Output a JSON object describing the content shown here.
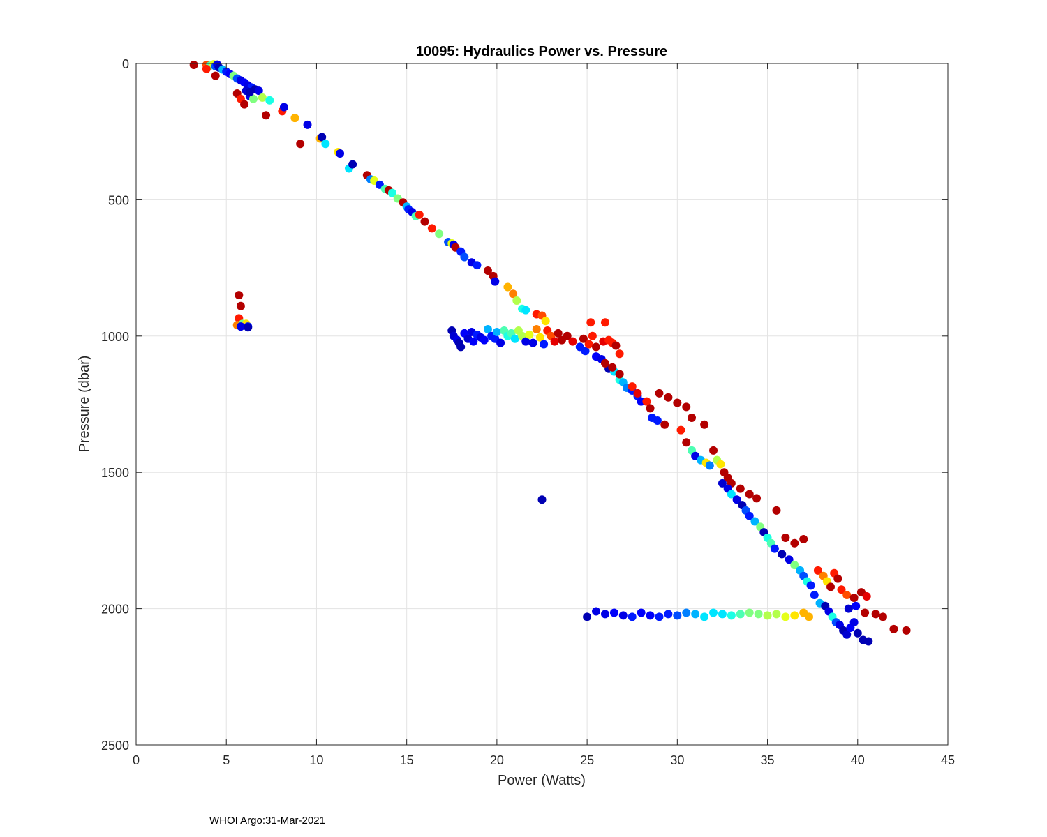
{
  "chart_data": {
    "type": "scatter",
    "title": "10095: Hydraulics Power vs. Pressure",
    "xlabel": "Power (Watts)",
    "ylabel": "Pressure (dbar)",
    "xlim": [
      0,
      45
    ],
    "ylim": [
      0,
      2500
    ],
    "y_reversed": true,
    "grid": true,
    "xticks": [
      0,
      5,
      10,
      15,
      20,
      25,
      30,
      35,
      40,
      45
    ],
    "yticks": [
      0,
      500,
      1000,
      1500,
      2000,
      2500
    ],
    "colormap": "jet",
    "color_range": [
      0,
      1
    ],
    "points": [
      [
        3.2,
        5,
        0.95
      ],
      [
        3.9,
        5,
        0.8
      ],
      [
        4.1,
        8,
        0.45
      ],
      [
        4.3,
        3,
        0.6
      ],
      [
        4.4,
        10,
        0.2
      ],
      [
        4.5,
        4,
        0.1
      ],
      [
        4.6,
        15,
        0.05
      ],
      [
        4.8,
        22,
        0.3
      ],
      [
        5.0,
        30,
        0.15
      ],
      [
        5.2,
        38,
        0.12
      ],
      [
        5.4,
        45,
        0.5
      ],
      [
        5.6,
        55,
        0.2
      ],
      [
        5.8,
        62,
        0.1
      ],
      [
        6.0,
        70,
        0.12
      ],
      [
        6.2,
        80,
        0.1
      ],
      [
        6.4,
        88,
        0.15
      ],
      [
        6.6,
        95,
        0.05
      ],
      [
        6.8,
        100,
        0.1
      ],
      [
        3.9,
        20,
        0.85
      ],
      [
        4.4,
        45,
        0.95
      ],
      [
        5.6,
        110,
        0.95
      ],
      [
        5.8,
        130,
        0.85
      ],
      [
        6.0,
        150,
        0.95
      ],
      [
        6.1,
        100,
        0.08
      ],
      [
        6.3,
        120,
        0.1
      ],
      [
        6.5,
        130,
        0.5
      ],
      [
        6.3,
        105,
        0.05
      ],
      [
        7.0,
        125,
        0.55
      ],
      [
        7.4,
        135,
        0.4
      ],
      [
        7.2,
        190,
        0.95
      ],
      [
        8.1,
        175,
        0.85
      ],
      [
        8.2,
        160,
        0.1
      ],
      [
        8.8,
        200,
        0.7
      ],
      [
        9.1,
        295,
        0.95
      ],
      [
        9.5,
        225,
        0.1
      ],
      [
        10.2,
        275,
        0.7
      ],
      [
        10.3,
        270,
        0.05
      ],
      [
        10.5,
        295,
        0.35
      ],
      [
        11.2,
        325,
        0.65
      ],
      [
        11.3,
        330,
        0.1
      ],
      [
        11.8,
        385,
        0.35
      ],
      [
        12.0,
        370,
        0.05
      ],
      [
        12.8,
        410,
        0.95
      ],
      [
        13.0,
        425,
        0.25
      ],
      [
        13.2,
        430,
        0.6
      ],
      [
        13.5,
        445,
        0.15
      ],
      [
        13.8,
        460,
        0.45
      ],
      [
        14.0,
        465,
        0.95
      ],
      [
        14.2,
        475,
        0.4
      ],
      [
        14.5,
        495,
        0.5
      ],
      [
        14.8,
        510,
        0.95
      ],
      [
        15.0,
        525,
        0.3
      ],
      [
        15.1,
        535,
        0.15
      ],
      [
        15.3,
        545,
        0.1
      ],
      [
        15.5,
        560,
        0.45
      ],
      [
        15.7,
        555,
        0.85
      ],
      [
        16.0,
        580,
        0.95
      ],
      [
        16.4,
        605,
        0.85
      ],
      [
        16.8,
        625,
        0.5
      ],
      [
        17.3,
        655,
        0.2
      ],
      [
        17.5,
        660,
        0.6
      ],
      [
        17.6,
        665,
        0.1
      ],
      [
        17.7,
        675,
        0.95
      ],
      [
        18.0,
        690,
        0.15
      ],
      [
        18.2,
        710,
        0.2
      ],
      [
        18.6,
        730,
        0.1
      ],
      [
        18.9,
        740,
        0.15
      ],
      [
        19.5,
        760,
        0.95
      ],
      [
        19.8,
        780,
        0.95
      ],
      [
        19.9,
        800,
        0.1
      ],
      [
        20.6,
        820,
        0.7
      ],
      [
        20.9,
        845,
        0.75
      ],
      [
        21.1,
        870,
        0.55
      ],
      [
        21.4,
        900,
        0.4
      ],
      [
        21.6,
        905,
        0.35
      ],
      [
        22.2,
        920,
        0.85
      ],
      [
        22.5,
        925,
        0.8
      ],
      [
        22.7,
        945,
        0.65
      ],
      [
        25.2,
        950,
        0.85
      ],
      [
        26.0,
        950,
        0.85
      ],
      [
        5.7,
        850,
        0.95
      ],
      [
        5.8,
        890,
        0.95
      ],
      [
        5.7,
        935,
        0.85
      ],
      [
        5.6,
        960,
        0.75
      ],
      [
        5.9,
        955,
        0.5
      ],
      [
        6.0,
        960,
        0.35
      ],
      [
        6.1,
        955,
        0.65
      ],
      [
        6.2,
        965,
        0.15
      ],
      [
        5.8,
        965,
        0.1
      ],
      [
        6.2,
        968,
        0.05
      ],
      [
        17.5,
        980,
        0.05
      ],
      [
        17.6,
        1000,
        0.08
      ],
      [
        17.8,
        1015,
        0.1
      ],
      [
        17.9,
        1025,
        0.05
      ],
      [
        18.0,
        1040,
        0.05
      ],
      [
        18.2,
        990,
        0.12
      ],
      [
        18.4,
        1010,
        0.08
      ],
      [
        18.6,
        985,
        0.1
      ],
      [
        18.7,
        1020,
        0.12
      ],
      [
        18.9,
        995,
        0.15
      ],
      [
        19.1,
        1005,
        0.1
      ],
      [
        19.3,
        1015,
        0.12
      ],
      [
        19.5,
        975,
        0.3
      ],
      [
        19.7,
        1000,
        0.15
      ],
      [
        19.9,
        1010,
        0.15
      ],
      [
        20.0,
        985,
        0.3
      ],
      [
        20.2,
        1025,
        0.1
      ],
      [
        20.4,
        980,
        0.45
      ],
      [
        20.6,
        1000,
        0.4
      ],
      [
        20.8,
        990,
        0.45
      ],
      [
        21.0,
        1010,
        0.35
      ],
      [
        21.2,
        980,
        0.55
      ],
      [
        21.4,
        1000,
        0.55
      ],
      [
        21.6,
        1020,
        0.1
      ],
      [
        21.8,
        995,
        0.6
      ],
      [
        22.0,
        1025,
        0.1
      ],
      [
        22.2,
        975,
        0.75
      ],
      [
        22.4,
        1005,
        0.65
      ],
      [
        22.6,
        1030,
        0.15
      ],
      [
        22.8,
        980,
        0.85
      ],
      [
        23.0,
        1000,
        0.8
      ],
      [
        23.2,
        1020,
        0.9
      ],
      [
        23.4,
        990,
        0.95
      ],
      [
        23.6,
        1015,
        0.95
      ],
      [
        23.9,
        1000,
        0.95
      ],
      [
        24.2,
        1020,
        0.9
      ],
      [
        24.6,
        1040,
        0.15
      ],
      [
        24.9,
        1055,
        0.15
      ],
      [
        24.8,
        1010,
        0.95
      ],
      [
        25.1,
        1030,
        0.85
      ],
      [
        25.3,
        1000,
        0.85
      ],
      [
        25.5,
        1040,
        0.95
      ],
      [
        25.9,
        1020,
        0.9
      ],
      [
        26.2,
        1015,
        0.85
      ],
      [
        26.4,
        1025,
        0.85
      ],
      [
        26.6,
        1035,
        0.95
      ],
      [
        26.8,
        1065,
        0.85
      ],
      [
        25.5,
        1075,
        0.12
      ],
      [
        25.8,
        1085,
        0.1
      ],
      [
        26.2,
        1120,
        0.05
      ],
      [
        26.5,
        1130,
        0.35
      ],
      [
        26.8,
        1160,
        0.4
      ],
      [
        27.0,
        1170,
        0.3
      ],
      [
        27.2,
        1190,
        0.25
      ],
      [
        27.5,
        1200,
        0.15
      ],
      [
        27.8,
        1220,
        0.15
      ],
      [
        28.0,
        1240,
        0.12
      ],
      [
        26.0,
        1100,
        0.95
      ],
      [
        26.4,
        1115,
        0.95
      ],
      [
        26.8,
        1140,
        0.95
      ],
      [
        27.5,
        1185,
        0.85
      ],
      [
        27.8,
        1210,
        0.9
      ],
      [
        28.3,
        1240,
        0.85
      ],
      [
        28.5,
        1265,
        0.95
      ],
      [
        28.6,
        1300,
        0.15
      ],
      [
        28.9,
        1310,
        0.15
      ],
      [
        29.3,
        1325,
        0.95
      ],
      [
        29.0,
        1210,
        0.95
      ],
      [
        29.5,
        1225,
        0.95
      ],
      [
        30.0,
        1245,
        0.95
      ],
      [
        30.5,
        1260,
        0.95
      ],
      [
        30.8,
        1300,
        0.95
      ],
      [
        31.5,
        1325,
        0.95
      ],
      [
        30.2,
        1345,
        0.85
      ],
      [
        30.5,
        1390,
        0.95
      ],
      [
        30.8,
        1420,
        0.45
      ],
      [
        31.0,
        1440,
        0.1
      ],
      [
        31.3,
        1455,
        0.3
      ],
      [
        31.6,
        1465,
        0.65
      ],
      [
        31.8,
        1475,
        0.25
      ],
      [
        32.0,
        1420,
        0.95
      ],
      [
        32.2,
        1455,
        0.55
      ],
      [
        32.4,
        1470,
        0.65
      ],
      [
        32.6,
        1500,
        0.95
      ],
      [
        32.8,
        1520,
        0.95
      ],
      [
        33.0,
        1540,
        0.95
      ],
      [
        33.5,
        1560,
        0.95
      ],
      [
        34.0,
        1580,
        0.95
      ],
      [
        34.4,
        1595,
        0.95
      ],
      [
        35.5,
        1640,
        0.95
      ],
      [
        32.5,
        1540,
        0.08
      ],
      [
        32.8,
        1560,
        0.1
      ],
      [
        33.0,
        1580,
        0.35
      ],
      [
        33.3,
        1600,
        0.1
      ],
      [
        33.6,
        1620,
        0.05
      ],
      [
        33.8,
        1640,
        0.2
      ],
      [
        34.0,
        1660,
        0.15
      ],
      [
        34.3,
        1680,
        0.3
      ],
      [
        34.6,
        1700,
        0.5
      ],
      [
        34.8,
        1720,
        0.05
      ],
      [
        35.0,
        1740,
        0.4
      ],
      [
        35.2,
        1760,
        0.45
      ],
      [
        35.4,
        1780,
        0.15
      ],
      [
        35.8,
        1800,
        0.05
      ],
      [
        36.2,
        1820,
        0.1
      ],
      [
        36.5,
        1840,
        0.5
      ],
      [
        36.8,
        1860,
        0.3
      ],
      [
        37.0,
        1880,
        0.2
      ],
      [
        37.2,
        1900,
        0.4
      ],
      [
        37.4,
        1915,
        0.15
      ],
      [
        36.0,
        1740,
        0.95
      ],
      [
        36.5,
        1760,
        0.95
      ],
      [
        37.0,
        1745,
        0.95
      ],
      [
        37.8,
        1860,
        0.85
      ],
      [
        38.1,
        1880,
        0.75
      ],
      [
        38.3,
        1900,
        0.65
      ],
      [
        38.5,
        1920,
        0.95
      ],
      [
        38.7,
        1870,
        0.85
      ],
      [
        38.9,
        1890,
        0.95
      ],
      [
        39.1,
        1930,
        0.85
      ],
      [
        39.4,
        1950,
        0.8
      ],
      [
        39.8,
        1960,
        0.95
      ],
      [
        40.2,
        1940,
        0.95
      ],
      [
        40.5,
        1955,
        0.9
      ],
      [
        37.6,
        1950,
        0.15
      ],
      [
        37.9,
        1980,
        0.3
      ],
      [
        38.2,
        1990,
        0.05
      ],
      [
        38.4,
        2010,
        0.1
      ],
      [
        38.6,
        2030,
        0.4
      ],
      [
        38.8,
        2050,
        0.2
      ],
      [
        39.0,
        2060,
        0.1
      ],
      [
        39.2,
        2080,
        0.05
      ],
      [
        39.4,
        2095,
        0.08
      ],
      [
        39.6,
        2070,
        0.12
      ],
      [
        39.8,
        2050,
        0.1
      ],
      [
        40.0,
        2090,
        0.05
      ],
      [
        40.3,
        2115,
        0.05
      ],
      [
        40.6,
        2120,
        0.05
      ],
      [
        39.5,
        2000,
        0.08
      ],
      [
        39.9,
        1990,
        0.12
      ],
      [
        40.4,
        2015,
        0.95
      ],
      [
        41.0,
        2020,
        0.95
      ],
      [
        41.4,
        2030,
        0.95
      ],
      [
        42.0,
        2075,
        0.95
      ],
      [
        42.7,
        2080,
        0.95
      ],
      [
        25.0,
        2030,
        0.05
      ],
      [
        25.5,
        2010,
        0.1
      ],
      [
        26.0,
        2020,
        0.1
      ],
      [
        26.5,
        2015,
        0.12
      ],
      [
        27.0,
        2025,
        0.1
      ],
      [
        27.5,
        2030,
        0.15
      ],
      [
        28.0,
        2015,
        0.12
      ],
      [
        28.5,
        2025,
        0.12
      ],
      [
        29.0,
        2030,
        0.15
      ],
      [
        29.5,
        2020,
        0.15
      ],
      [
        30.0,
        2025,
        0.2
      ],
      [
        30.5,
        2015,
        0.25
      ],
      [
        31.0,
        2020,
        0.3
      ],
      [
        31.5,
        2030,
        0.35
      ],
      [
        32.0,
        2015,
        0.35
      ],
      [
        32.5,
        2020,
        0.35
      ],
      [
        33.0,
        2025,
        0.4
      ],
      [
        33.5,
        2020,
        0.45
      ],
      [
        34.0,
        2015,
        0.5
      ],
      [
        34.5,
        2020,
        0.5
      ],
      [
        35.0,
        2025,
        0.55
      ],
      [
        35.5,
        2020,
        0.55
      ],
      [
        36.0,
        2030,
        0.6
      ],
      [
        36.5,
        2025,
        0.65
      ],
      [
        37.0,
        2015,
        0.7
      ],
      [
        37.3,
        2030,
        0.7
      ],
      [
        22.5,
        1600,
        0.05
      ]
    ]
  },
  "footer": {
    "text": "WHOI Argo:31-Mar-2021"
  }
}
